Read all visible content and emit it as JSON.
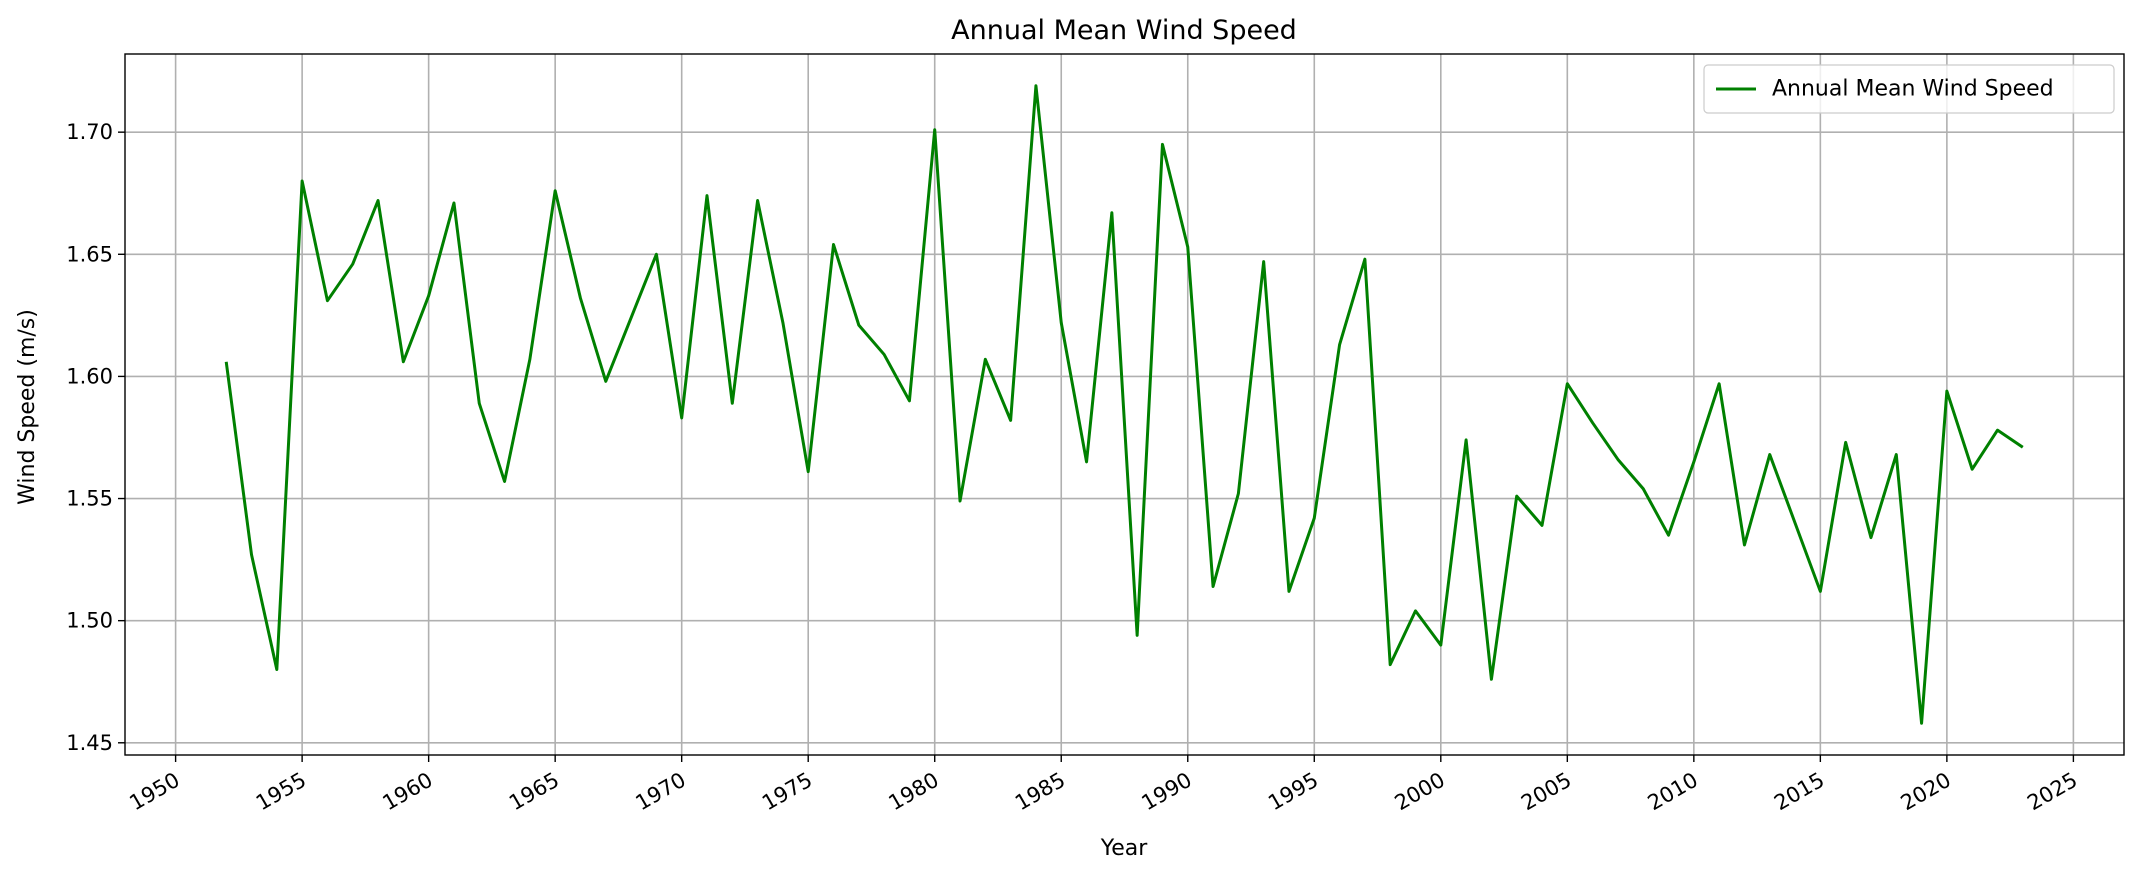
{
  "chart_data": {
    "type": "line",
    "title": "Annual Mean Wind Speed",
    "xlabel": "Year",
    "ylabel": "Wind Speed (m/s)",
    "xlim": [
      1948,
      2027
    ],
    "ylim": [
      1.445,
      1.732
    ],
    "xticks": [
      1950,
      1955,
      1960,
      1965,
      1970,
      1975,
      1980,
      1985,
      1990,
      1995,
      2000,
      2005,
      2010,
      2015,
      2020,
      2025
    ],
    "yticks": [
      1.45,
      1.5,
      1.55,
      1.6,
      1.65,
      1.7
    ],
    "grid": true,
    "legend_position": "top-right",
    "series": [
      {
        "name": "Annual Mean Wind Speed",
        "color": "#008000",
        "x": [
          1952,
          1953,
          1954,
          1955,
          1956,
          1957,
          1958,
          1959,
          1960,
          1961,
          1962,
          1963,
          1964,
          1965,
          1966,
          1967,
          1968,
          1969,
          1970,
          1971,
          1972,
          1973,
          1974,
          1975,
          1976,
          1977,
          1978,
          1979,
          1980,
          1981,
          1982,
          1983,
          1984,
          1985,
          1986,
          1987,
          1988,
          1989,
          1990,
          1991,
          1992,
          1993,
          1994,
          1995,
          1996,
          1997,
          1998,
          1999,
          2000,
          2001,
          2002,
          2003,
          2004,
          2005,
          2006,
          2007,
          2008,
          2009,
          2010,
          2011,
          2012,
          2013,
          2014,
          2015,
          2016,
          2017,
          2018,
          2019,
          2020,
          2021,
          2022,
          2023
        ],
        "values": [
          1.606,
          1.527,
          1.48,
          1.68,
          1.631,
          1.646,
          1.672,
          1.606,
          1.633,
          1.671,
          1.589,
          1.557,
          1.607,
          1.676,
          1.632,
          1.598,
          1.624,
          1.65,
          1.583,
          1.674,
          1.589,
          1.672,
          1.622,
          1.561,
          1.654,
          1.621,
          1.609,
          1.59,
          1.701,
          1.549,
          1.607,
          1.582,
          1.719,
          1.622,
          1.565,
          1.667,
          1.494,
          1.695,
          1.653,
          1.514,
          1.552,
          1.647,
          1.512,
          1.542,
          1.613,
          1.648,
          1.482,
          1.504,
          1.49,
          1.574,
          1.476,
          1.551,
          1.539,
          1.597,
          1.581,
          1.566,
          1.554,
          1.535,
          1.565,
          1.597,
          1.531,
          1.568,
          1.54,
          1.512,
          1.573,
          1.534,
          1.568,
          1.458,
          1.594,
          1.562,
          1.578,
          1.571
        ]
      }
    ]
  }
}
